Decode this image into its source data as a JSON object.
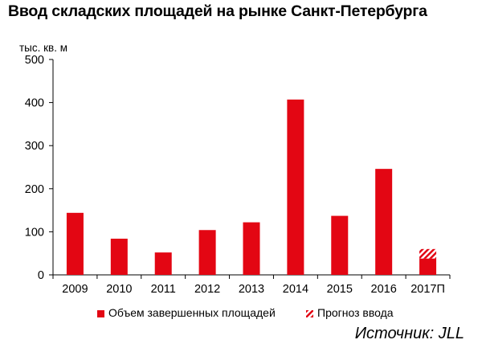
{
  "chart_data": {
    "type": "bar",
    "title": "Ввод складских площадей на рынке Санкт-Петербурга",
    "ylabel": "тыс. кв. м",
    "xlabel": "",
    "categories": [
      "2009",
      "2010",
      "2011",
      "2012",
      "2013",
      "2014",
      "2015",
      "2016",
      "2017П"
    ],
    "series": [
      {
        "name": "Объем завершенных площадей",
        "values": [
          144,
          84,
          52,
          104,
          122,
          407,
          137,
          246,
          38
        ],
        "color": "#e30613",
        "pattern": "solid"
      },
      {
        "name": "Прогноз ввода",
        "values": [
          0,
          0,
          0,
          0,
          0,
          0,
          0,
          0,
          22
        ],
        "color": "#e30613",
        "pattern": "hatched"
      }
    ],
    "stacked": true,
    "ylim": [
      0,
      500
    ],
    "yticks": [
      "0",
      "100",
      "200",
      "300",
      "400",
      "500"
    ],
    "grid": false,
    "legend_position": "bottom",
    "source": "Источник: JLL"
  }
}
